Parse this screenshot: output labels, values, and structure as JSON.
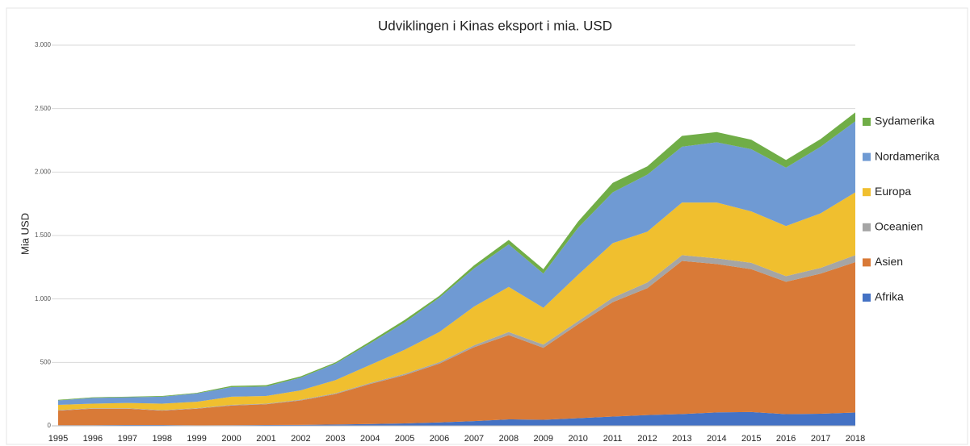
{
  "chart_data": {
    "type": "stacked_area",
    "title": "Udviklingen i Kinas eksport i mia. USD",
    "y_label": "Mia USD",
    "categories": [
      "1995",
      "1996",
      "1997",
      "1998",
      "1999",
      "2000",
      "2001",
      "2002",
      "2003",
      "2004",
      "2005",
      "2006",
      "2007",
      "2008",
      "2009",
      "2010",
      "2011",
      "2012",
      "2013",
      "2014",
      "2015",
      "2016",
      "2017",
      "2018"
    ],
    "series": [
      {
        "name": "Afrika",
        "color": "#4472c4",
        "values": [
          5,
          5,
          6,
          6,
          4,
          5,
          6,
          7,
          10,
          14,
          19,
          27,
          37,
          51,
          48,
          60,
          73,
          85,
          93,
          106,
          109,
          92,
          95,
          105
        ]
      },
      {
        "name": "Asien",
        "color": "#d97a37",
        "values": [
          115,
          130,
          129,
          114,
          131,
          155,
          164,
          193,
          240,
          316,
          381,
          463,
          583,
          664,
          567,
          740,
          902,
          1000,
          1207,
          1169,
          1126,
          1043,
          1105,
          1185
        ]
      },
      {
        "name": "Oceanien",
        "color": "#a5a5a5",
        "values": [
          4,
          4,
          4,
          4,
          4,
          5,
          5,
          6,
          7,
          8,
          10,
          12,
          15,
          25,
          25,
          25,
          35,
          45,
          45,
          45,
          50,
          45,
          45,
          55
        ]
      },
      {
        "name": "Europa",
        "color": "#f0bf2f",
        "values": [
          41,
          36,
          41,
          51,
          51,
          65,
          60,
          74,
          103,
          142,
          190,
          238,
          305,
          355,
          290,
          365,
          430,
          400,
          415,
          440,
          405,
          395,
          430,
          495
        ]
      },
      {
        "name": "Nordamerika",
        "color": "#6f9ad3",
        "values": [
          35,
          45,
          45,
          55,
          65,
          75,
          75,
          100,
          130,
          170,
          215,
          270,
          300,
          335,
          270,
          370,
          400,
          450,
          440,
          475,
          490,
          460,
          525,
          560
        ]
      },
      {
        "name": "Sydamerika",
        "color": "#70ad47",
        "values": [
          5,
          5,
          5,
          5,
          5,
          10,
          10,
          10,
          10,
          15,
          20,
          15,
          25,
          35,
          35,
          50,
          75,
          65,
          85,
          80,
          75,
          60,
          60,
          70
        ]
      }
    ],
    "ylim": [
      0,
      3000
    ],
    "yticks": [
      0,
      500,
      {
        "value": 1000,
        "label": "1.000"
      },
      {
        "value": 1500,
        "label": "1.500"
      },
      {
        "value": 2000,
        "label": "2.000"
      },
      {
        "value": 2500,
        "label": "2.500"
      },
      {
        "value": 3000,
        "label": "3.000"
      }
    ],
    "grid": true,
    "legend": "right"
  }
}
